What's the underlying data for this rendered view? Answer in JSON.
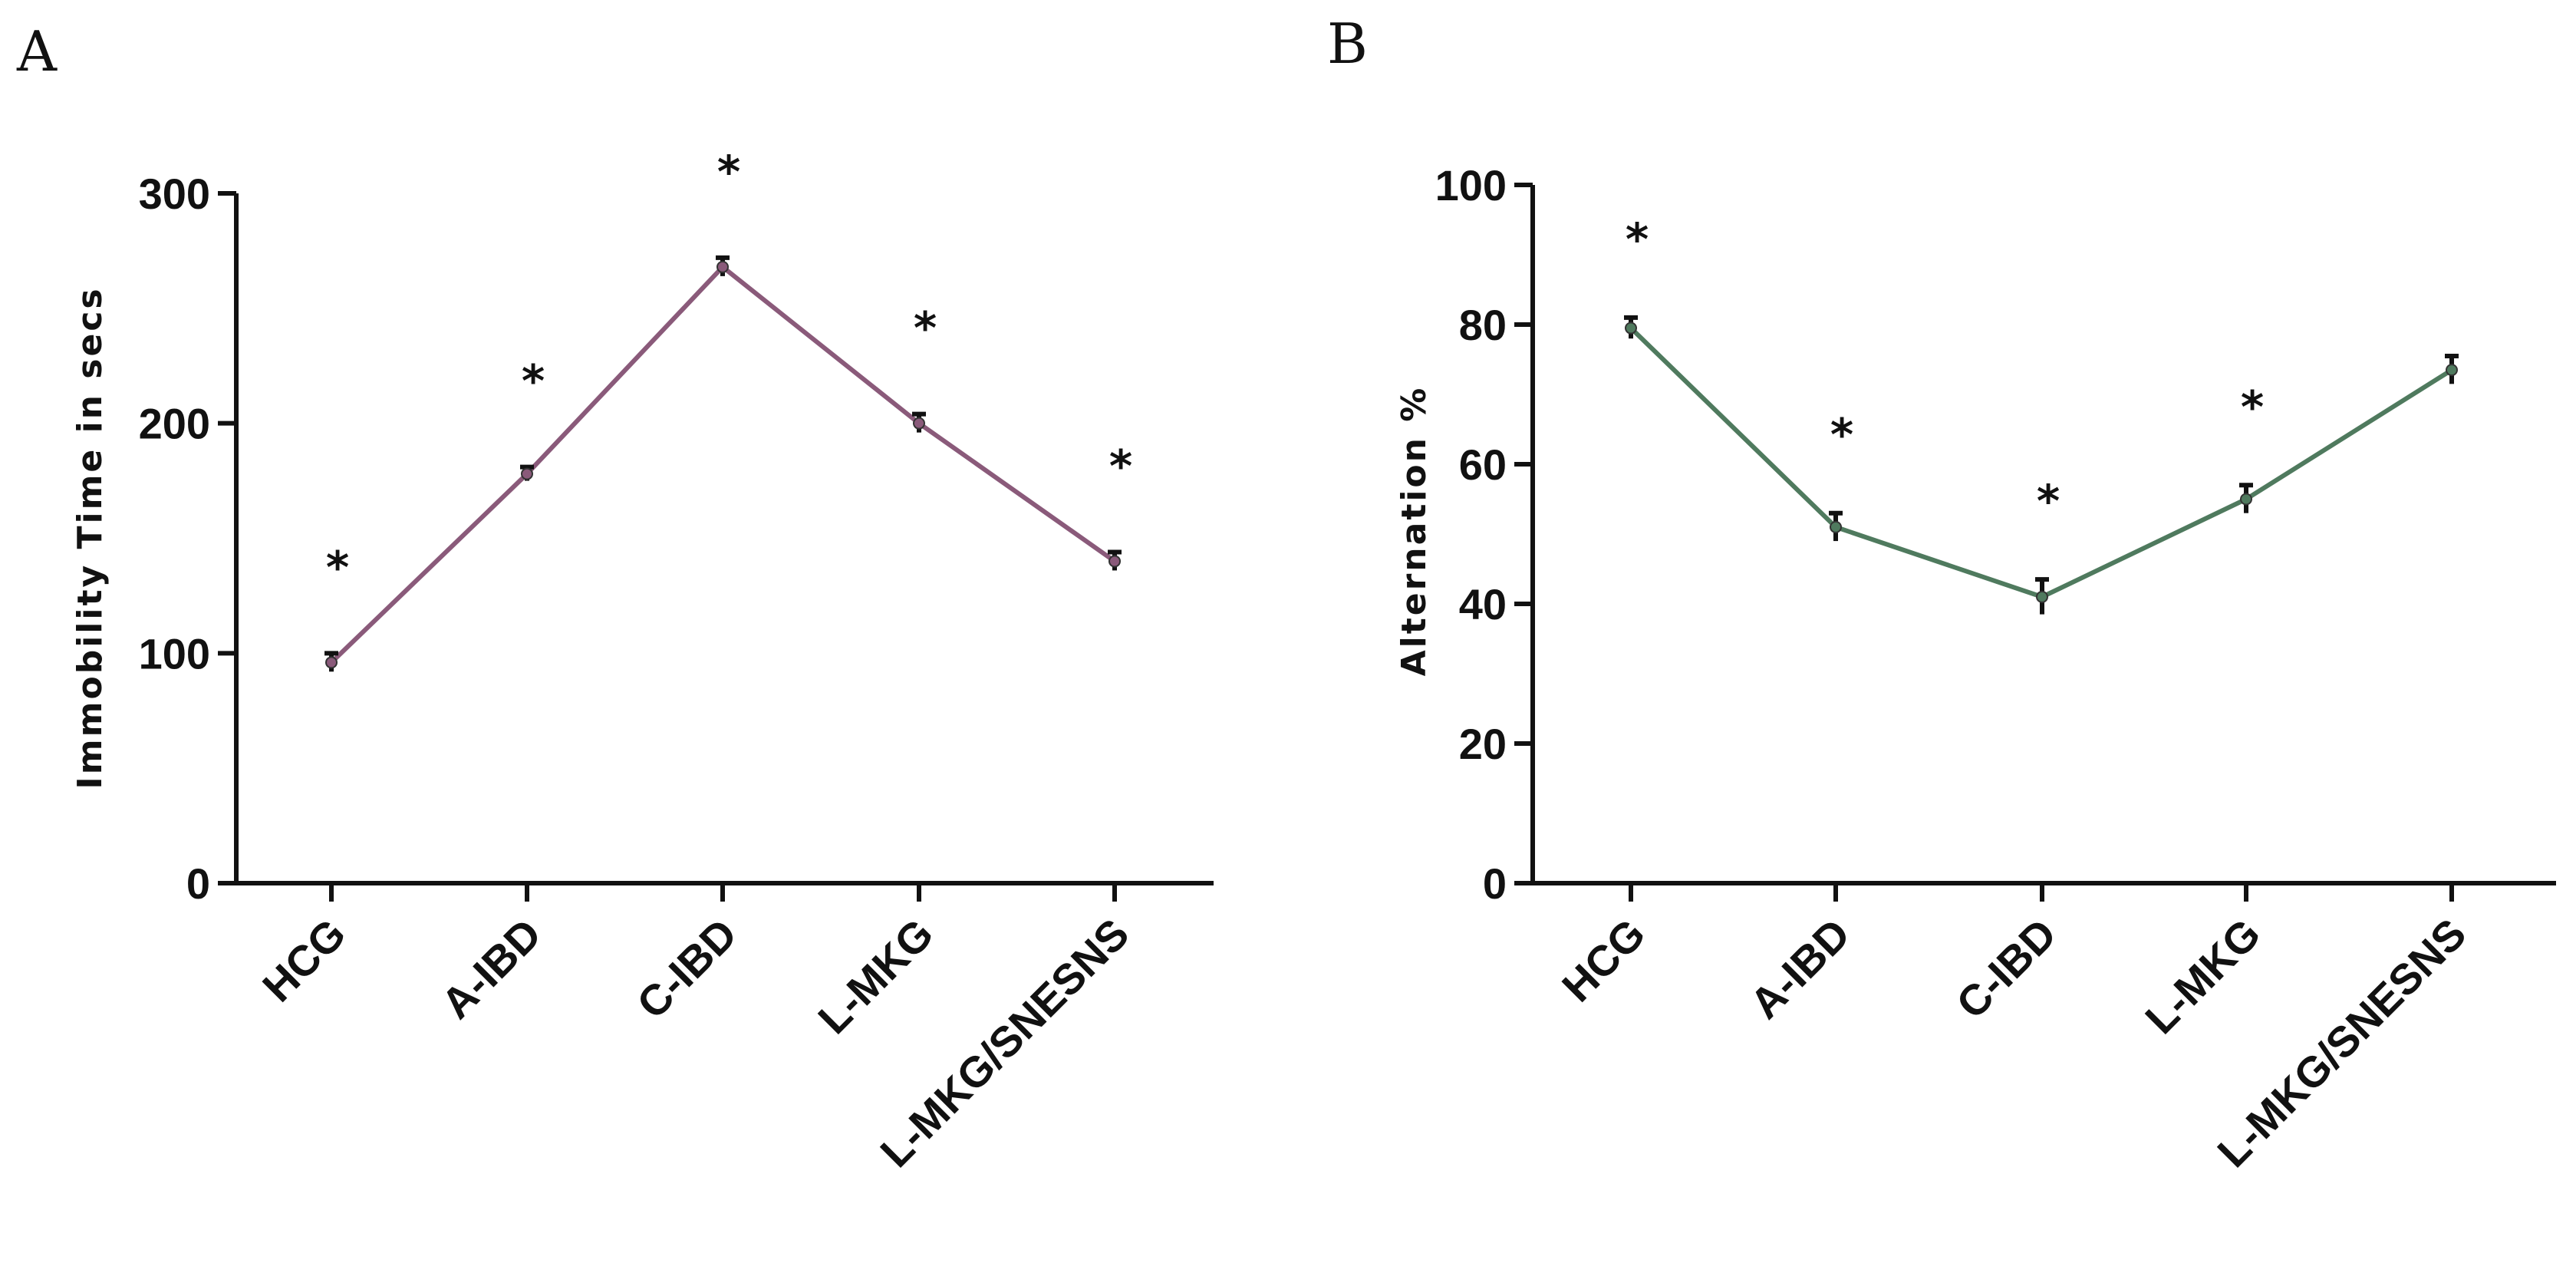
{
  "chart_data": [
    {
      "panel_label": "A",
      "type": "line",
      "ylabel": "Immobility Time in secs",
      "xlabel": "",
      "ylim": [
        0,
        300
      ],
      "yticks": [
        0,
        100,
        200,
        300
      ],
      "categories": [
        "HCG",
        "A-IBD",
        "C-IBD",
        "L-MKG",
        "L-MKG/SNESNS"
      ],
      "values": [
        96,
        178,
        268,
        200,
        140
      ],
      "errors": [
        4,
        3,
        4,
        4,
        4
      ],
      "significance": [
        "*",
        "*",
        "*",
        "*",
        "*"
      ],
      "line_color": "#8a5a7a"
    },
    {
      "panel_label": "B",
      "type": "line",
      "ylabel": "Alternation %",
      "xlabel": "",
      "ylim": [
        0,
        100
      ],
      "yticks": [
        0,
        20,
        40,
        60,
        80,
        100
      ],
      "categories": [
        "HCG",
        "A-IBD",
        "C-IBD",
        "L-MKG",
        "L-MKG/SNESNS"
      ],
      "values": [
        79.5,
        51,
        41,
        55,
        73.5
      ],
      "errors": [
        1.5,
        2,
        2.5,
        2,
        2
      ],
      "significance": [
        "*",
        "*",
        "*",
        "*",
        ""
      ],
      "line_color": "#4f7a5e"
    }
  ]
}
